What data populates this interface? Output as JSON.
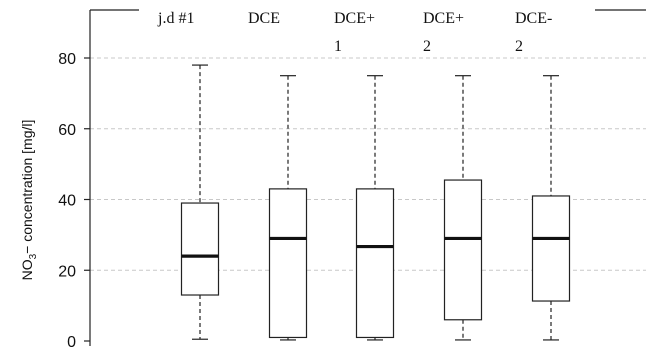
{
  "chart_data": {
    "type": "boxplot",
    "title": "",
    "xlabel": "",
    "ylabel": "NO3− concentration [mg/l]",
    "ylabel_parts": {
      "base": "NO",
      "sub": "3",
      "rest": "− concentration [mg/l]"
    },
    "ylim": [
      0,
      90
    ],
    "yticks": [
      0,
      20,
      40,
      60,
      80
    ],
    "grid": true,
    "categories": [
      {
        "lines": [
          "j.d #1"
        ]
      },
      {
        "lines": [
          "DCE"
        ]
      },
      {
        "lines": [
          "DCE+",
          "1"
        ]
      },
      {
        "lines": [
          "DCE+",
          "2"
        ]
      },
      {
        "lines": [
          "DCE-",
          "2"
        ]
      }
    ],
    "boxes": [
      {
        "min": 0.5,
        "q1": 13,
        "median": 24,
        "q3": 39,
        "max": 78
      },
      {
        "min": 0.3,
        "q1": 1,
        "median": 29,
        "q3": 43,
        "max": 75
      },
      {
        "min": 0.3,
        "q1": 1,
        "median": 26.7,
        "q3": 43,
        "max": 75
      },
      {
        "min": 0.3,
        "q1": 6,
        "median": 29,
        "q3": 45.5,
        "max": 75
      },
      {
        "min": 0.3,
        "q1": 11.3,
        "median": 29,
        "q3": 41,
        "max": 75
      }
    ]
  }
}
